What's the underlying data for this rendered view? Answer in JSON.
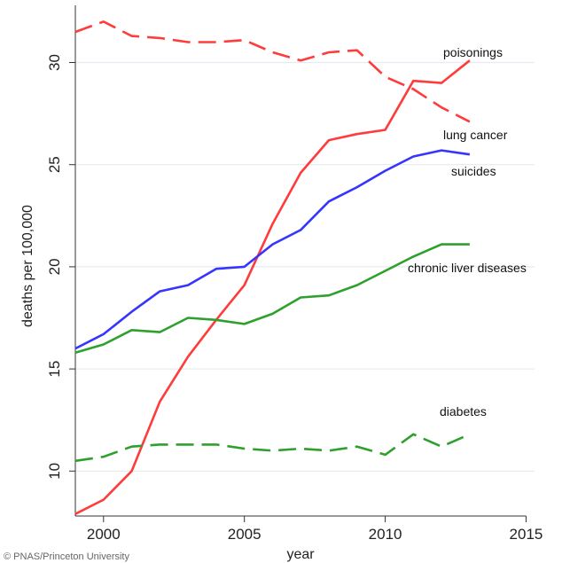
{
  "chart_data": {
    "type": "line",
    "xlabel": "year",
    "ylabel": "deaths per 100,000",
    "xlim": [
      1999,
      2015.3
    ],
    "ylim": [
      7.8,
      32.8
    ],
    "xticks": [
      2000,
      2005,
      2010,
      2015
    ],
    "yticks": [
      10,
      15,
      20,
      25,
      30
    ],
    "grid": "horizontal",
    "series": [
      {
        "name": "poisonings",
        "color": "#ff3b3b",
        "style": "solid",
        "x": [
          1999,
          2000,
          2001,
          2002,
          2003,
          2004,
          2005,
          2006,
          2007,
          2008,
          2009,
          2010,
          2011,
          2012,
          2013
        ],
        "y": [
          7.9,
          8.6,
          10.0,
          13.4,
          15.6,
          17.4,
          19.1,
          22.1,
          24.6,
          26.2,
          26.5,
          26.7,
          29.1,
          29.0,
          30.1
        ]
      },
      {
        "name": "lung cancer",
        "color": "#ff3b3b",
        "style": "dashed",
        "x": [
          1999,
          2000,
          2001,
          2002,
          2003,
          2004,
          2005,
          2006,
          2007,
          2008,
          2009,
          2010,
          2011,
          2012,
          2013
        ],
        "y": [
          31.5,
          32.0,
          31.3,
          31.2,
          31.0,
          31.0,
          31.1,
          30.5,
          30.1,
          30.5,
          30.6,
          29.3,
          28.7,
          27.8,
          27.1
        ]
      },
      {
        "name": "suicides",
        "color": "#3535ff",
        "style": "solid",
        "x": [
          1999,
          2000,
          2001,
          2002,
          2003,
          2004,
          2005,
          2006,
          2007,
          2008,
          2009,
          2010,
          2011,
          2012,
          2013
        ],
        "y": [
          16.0,
          16.7,
          17.8,
          18.8,
          19.1,
          19.9,
          20.0,
          21.1,
          21.8,
          23.2,
          23.9,
          24.7,
          25.4,
          25.7,
          25.5
        ]
      },
      {
        "name": "chronic liver diseases",
        "color": "#2ea02e",
        "style": "solid",
        "x": [
          1999,
          2000,
          2001,
          2002,
          2003,
          2004,
          2005,
          2006,
          2007,
          2008,
          2009,
          2010,
          2011,
          2012,
          2013
        ],
        "y": [
          15.8,
          16.2,
          16.9,
          16.8,
          17.5,
          17.4,
          17.2,
          17.7,
          18.5,
          18.6,
          19.1,
          19.8,
          20.5,
          21.1,
          21.1
        ]
      },
      {
        "name": "diabetes",
        "color": "#2ea02e",
        "style": "dashed",
        "x": [
          1999,
          2000,
          2001,
          2002,
          2003,
          2004,
          2005,
          2006,
          2007,
          2008,
          2009,
          2010,
          2011,
          2012,
          2013
        ],
        "y": [
          10.5,
          10.7,
          11.2,
          11.3,
          11.3,
          11.3,
          11.1,
          11.0,
          11.1,
          11.0,
          11.2,
          10.8,
          11.8,
          11.2,
          11.8
        ]
      }
    ]
  },
  "credit": "© PNAS/Princeton University"
}
